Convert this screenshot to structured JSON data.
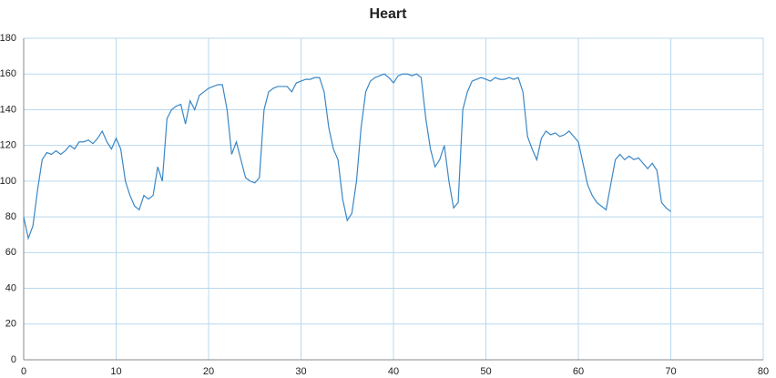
{
  "chart_data": {
    "type": "line",
    "title": "Heart",
    "x": [
      0,
      0.5,
      1,
      1.5,
      2,
      2.5,
      3,
      3.5,
      4,
      4.5,
      5,
      5.5,
      6,
      6.5,
      7,
      7.5,
      8,
      8.5,
      9,
      9.5,
      10,
      10.5,
      11,
      11.5,
      12,
      12.5,
      13,
      13.5,
      14,
      14.5,
      15,
      15.5,
      16,
      16.5,
      17,
      17.5,
      18,
      18.5,
      19,
      19.5,
      20,
      20.5,
      21,
      21.5,
      22,
      22.5,
      23,
      23.5,
      24,
      24.5,
      25,
      25.5,
      26,
      26.5,
      27,
      27.5,
      28,
      28.5,
      29,
      29.5,
      30,
      30.5,
      31,
      31.5,
      32,
      32.5,
      33,
      33.5,
      34,
      34.5,
      35,
      35.5,
      36,
      36.5,
      37,
      37.5,
      38,
      38.5,
      39,
      39.5,
      40,
      40.5,
      41,
      41.5,
      42,
      42.5,
      43,
      43.5,
      44,
      44.5,
      45,
      45.5,
      46,
      46.5,
      47,
      47.5,
      48,
      48.5,
      49,
      49.5,
      50,
      50.5,
      51,
      51.5,
      52,
      52.5,
      53,
      53.5,
      54,
      54.5,
      55,
      55.5,
      56,
      56.5,
      57,
      57.5,
      58,
      58.5,
      59,
      59.5,
      60,
      60.5,
      61,
      61.5,
      62,
      62.5,
      63,
      63.5,
      64,
      64.5,
      65,
      65.5,
      66,
      66.5,
      67,
      67.5,
      68,
      68.5,
      69,
      69.5,
      70
    ],
    "series": [
      {
        "name": "Heart",
        "color": "#3a87c6",
        "values": [
          80,
          68,
          75,
          95,
          112,
          116,
          115,
          117,
          115,
          117,
          120,
          118,
          122,
          122,
          123,
          121,
          124,
          128,
          122,
          118,
          124,
          118,
          100,
          92,
          86,
          84,
          92,
          90,
          92,
          108,
          100,
          135,
          140,
          142,
          143,
          132,
          145,
          140,
          148,
          150,
          152,
          153,
          154,
          154,
          140,
          115,
          122,
          112,
          102,
          100,
          99,
          102,
          140,
          150,
          152,
          153,
          153,
          153,
          150,
          155,
          156,
          157,
          157,
          158,
          158,
          150,
          130,
          118,
          112,
          90,
          78,
          82,
          100,
          130,
          150,
          156,
          158,
          159,
          160,
          158,
          155,
          159,
          160,
          160,
          159,
          160,
          158,
          135,
          118,
          108,
          112,
          120,
          100,
          85,
          88,
          140,
          150,
          156,
          157,
          158,
          157,
          156,
          158,
          157,
          157,
          158,
          157,
          158,
          150,
          125,
          118,
          112,
          124,
          128,
          126,
          127,
          125,
          126,
          128,
          125,
          122,
          110,
          98,
          92,
          88,
          86,
          84,
          98,
          112,
          115,
          112,
          114,
          112,
          113,
          110,
          107,
          110,
          106,
          88,
          85,
          83
        ]
      }
    ],
    "xlim": [
      0,
      80
    ],
    "xticks": [
      0,
      10,
      20,
      30,
      40,
      50,
      60,
      70,
      80
    ],
    "ylim": [
      0,
      180
    ],
    "yticks": [
      0,
      20,
      40,
      60,
      80,
      100,
      120,
      140,
      160,
      180
    ],
    "grid": true
  }
}
